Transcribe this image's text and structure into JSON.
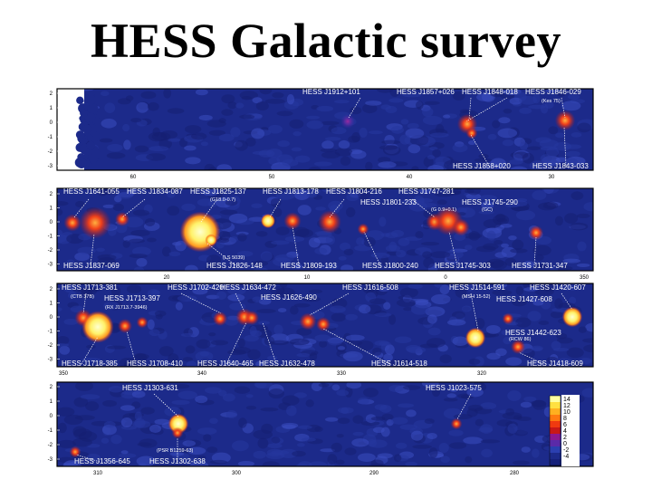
{
  "title": "HESS Galactic survey",
  "colors": {
    "map_bg": "#1c2a8a",
    "map_mid": "#2435a6",
    "blob_red": "#e0241c",
    "blob_yellow": "#fff26a"
  },
  "panels": [
    {
      "lon_ticks": [
        "60",
        "50",
        "40",
        "30"
      ],
      "lat_ticks": [
        "2",
        "1",
        "0",
        "-1",
        "-2",
        "-3"
      ],
      "top_labels": [
        "HESS J1912+101",
        "HESS J1857+026",
        "HESS J1848-018",
        "HESS J1846-029"
      ],
      "bottom_labels": [
        "HESS J1858+020",
        "HESS J1843-033"
      ],
      "sub_labels": [
        "(Kes 75)"
      ]
    },
    {
      "lon_ticks": [
        "20",
        "10",
        "0",
        "350"
      ],
      "lat_ticks": [
        "2",
        "1",
        "0",
        "-1",
        "-2",
        "-3"
      ],
      "top_labels": [
        "HESS J1641-055",
        "HESS J1834-087",
        "HESS J1825-137",
        "HESS J1813-178",
        "HESS J1804-216",
        "HESS J1747-281",
        "HESS J1801-233",
        "HESS J1745-290"
      ],
      "bottom_labels": [
        "HESS J1837-069",
        "HESS J1826-148",
        "HESS J1809-193",
        "HESS J1800-240",
        "HESS J1745-303",
        "HESS J1731-347"
      ],
      "sub_labels": [
        "(G18.0-0.7)",
        "(G 0.9+0.1)",
        "(GC)",
        "(LS 5039)"
      ]
    },
    {
      "lon_ticks": [
        "350",
        "340",
        "330",
        "320"
      ],
      "lat_ticks": [
        "2",
        "1",
        "0",
        "-1",
        "-2",
        "-3"
      ],
      "top_labels": [
        "HESS J1713-381",
        "HESS J1702-420",
        "HESS J1634-472",
        "HESS J1616-508",
        "HESS J1514-591",
        "HESS J1420-607",
        "HESS J1713-397",
        "HESS J1626-490",
        "HESS J1427-608",
        "HESS J1442-623"
      ],
      "bottom_labels": [
        "HESS J1718-385",
        "HESS J1708-410",
        "HESS J1640-465",
        "HESS J1632-478",
        "HESS J1614-518",
        "HESS J1418-609"
      ],
      "sub_labels": [
        "(CTB 37B)",
        "(RX J1713.7-3946)",
        "(MSH 15-52)",
        "(RCW 86)"
      ]
    },
    {
      "lon_ticks": [
        "310",
        "300",
        "290",
        "280"
      ],
      "lat_ticks": [
        "2",
        "1",
        "0",
        "-1",
        "-2",
        "-3"
      ],
      "top_labels": [
        "HESS J1303-631",
        "HESS J1023-575"
      ],
      "bottom_labels": [
        "HESS J1356-645",
        "HESS J1302-638"
      ],
      "sub_labels": [
        "(PSR B1259-63)"
      ]
    }
  ],
  "colorbar": {
    "ticks": [
      "14",
      "12",
      "10",
      "8",
      "6",
      "4",
      "2",
      "0",
      "-2",
      "-4"
    ],
    "colors": [
      "#ffffa0",
      "#ffe040",
      "#ffb020",
      "#ff7a10",
      "#f03a10",
      "#c81818",
      "#8c1890",
      "#5a2aa8",
      "#2b3fb0",
      "#1c2a8a",
      "#15207a"
    ]
  }
}
